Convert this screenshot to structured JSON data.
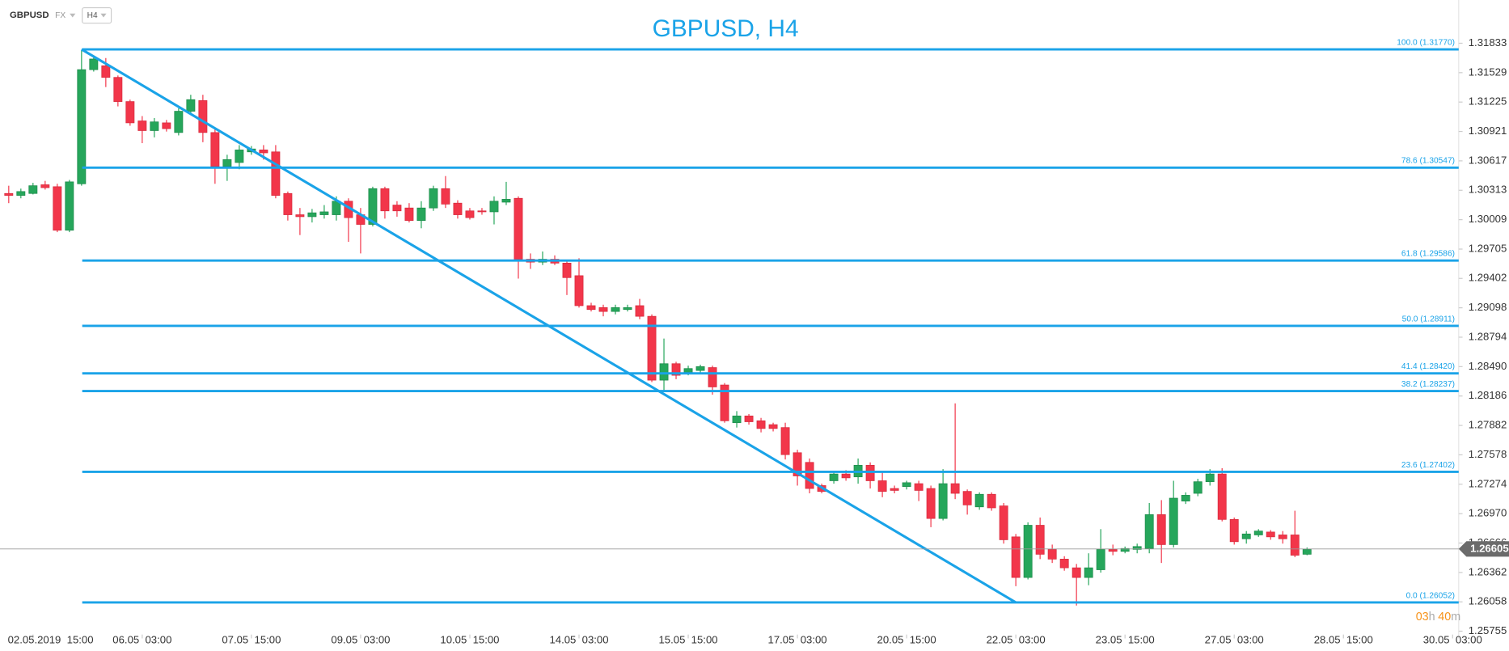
{
  "header": {
    "symbol": "GBPUSD",
    "market": "FX",
    "timeframe": "H4"
  },
  "chart_data": {
    "type": "candlestick",
    "title": "GBPUSD, H4",
    "up_color": "#26a65b",
    "down_color": "#f2364a",
    "open": [
      1.3028,
      1.3026,
      1.3028,
      1.3037,
      1.3035,
      1.299,
      1.3038,
      1.3156,
      1.316,
      1.3148,
      1.3123,
      1.3103,
      1.3093,
      1.3101,
      1.3091,
      1.3113,
      1.3124,
      1.3091,
      1.3056,
      1.306,
      1.3071,
      1.3073,
      1.3071,
      1.3028,
      1.3006,
      1.3004,
      1.3006,
      1.3006,
      1.302,
      1.3006,
      1.2996,
      1.3033,
      1.3016,
      1.3013,
      1.3,
      1.3013,
      1.3033,
      1.3018,
      1.301,
      1.301,
      1.3009,
      1.3019,
      1.3023,
      1.296,
      1.2957,
      1.296,
      1.2956,
      1.2943,
      1.2912,
      1.291,
      1.2906,
      1.2908,
      1.2912,
      1.2901,
      1.2835,
      1.2852,
      1.2843,
      1.2845,
      1.2848,
      1.283,
      1.2791,
      1.2798,
      1.2793,
      1.2789,
      1.2786,
      1.276,
      1.275,
      1.2726,
      1.2731,
      1.2738,
      1.2735,
      1.2747,
      1.2731,
      1.2723,
      1.2725,
      1.2728,
      1.2723,
      1.2692,
      1.2728,
      1.272,
      1.2704,
      1.2717,
      1.2705,
      1.2673,
      1.2631,
      1.2685,
      1.266,
      1.265,
      1.2641,
      1.2631,
      1.2639,
      1.266,
      1.2658,
      1.266,
      1.2661,
      1.2696,
      1.2665,
      1.271,
      1.2718,
      1.273,
      1.2738,
      1.2691,
      1.2671,
      1.2675,
      1.2678,
      1.2675,
      1.2675,
      1.2655
    ],
    "high": [
      1.3036,
      1.3033,
      1.3039,
      1.3041,
      1.3038,
      1.3042,
      1.3176,
      1.317,
      1.3168,
      1.315,
      1.3125,
      1.3108,
      1.3106,
      1.3104,
      1.3116,
      1.313,
      1.313,
      1.3095,
      1.3068,
      1.3078,
      1.3077,
      1.3078,
      1.3078,
      1.303,
      1.3013,
      1.3012,
      1.3016,
      1.3025,
      1.3023,
      1.3013,
      1.3035,
      1.3035,
      1.302,
      1.3018,
      1.302,
      1.3036,
      1.3046,
      1.3021,
      1.3013,
      1.3013,
      1.3025,
      1.304,
      1.3025,
      1.2966,
      1.2968,
      1.2964,
      1.2959,
      1.2961,
      1.2915,
      1.2913,
      1.2913,
      1.2913,
      1.2919,
      1.2903,
      1.2878,
      1.2854,
      1.285,
      1.2851,
      1.285,
      1.2832,
      1.2803,
      1.28,
      1.2796,
      1.2791,
      1.2791,
      1.2763,
      1.2754,
      1.2728,
      1.2741,
      1.2742,
      1.2754,
      1.275,
      1.274,
      1.2726,
      1.2731,
      1.2731,
      1.2726,
      1.2743,
      1.2811,
      1.2722,
      1.2719,
      1.2719,
      1.2708,
      1.2676,
      1.2688,
      1.2693,
      1.2665,
      1.2653,
      1.2645,
      1.2656,
      1.2681,
      1.2665,
      1.2663,
      1.2666,
      1.2708,
      1.2711,
      1.2731,
      1.2719,
      1.2733,
      1.2743,
      1.2744,
      1.2693,
      1.2679,
      1.2681,
      1.268,
      1.2679,
      1.27,
      1.2662
    ],
    "low": [
      1.3018,
      1.3023,
      1.3027,
      1.3032,
      1.2988,
      1.2988,
      1.3036,
      1.3154,
      1.3138,
      1.3118,
      1.3098,
      1.308,
      1.3086,
      1.3092,
      1.3088,
      1.311,
      1.3081,
      1.3038,
      1.3041,
      1.3053,
      1.3068,
      1.3063,
      1.3023,
      1.3,
      1.2985,
      1.2998,
      1.3002,
      1.3,
      1.2978,
      1.2966,
      1.2994,
      1.3002,
      1.3004,
      1.2998,
      1.2992,
      1.301,
      1.3013,
      1.3002,
      1.3001,
      1.3006,
      1.2996,
      1.3016,
      1.294,
      1.295,
      1.2954,
      1.2954,
      1.2923,
      1.291,
      1.2906,
      1.2901,
      1.2903,
      1.2906,
      1.2898,
      1.2833,
      1.2823,
      1.2836,
      1.284,
      1.2842,
      1.282,
      1.2791,
      1.2786,
      1.2789,
      1.2781,
      1.2782,
      1.2753,
      1.2726,
      1.2718,
      1.2718,
      1.2728,
      1.2731,
      1.2728,
      1.2723,
      1.2714,
      1.2718,
      1.2722,
      1.271,
      1.2683,
      1.269,
      1.2712,
      1.2696,
      1.2701,
      1.27,
      1.2666,
      1.2622,
      1.2629,
      1.265,
      1.2646,
      1.2638,
      1.2602,
      1.2623,
      1.2636,
      1.2654,
      1.2656,
      1.2656,
      1.2656,
      1.2646,
      1.2662,
      1.2707,
      1.2715,
      1.2726,
      1.2689,
      1.2665,
      1.2666,
      1.2673,
      1.267,
      1.2666,
      1.2652,
      1.2654
    ],
    "close": [
      1.3026,
      1.303,
      1.3036,
      1.3034,
      1.299,
      1.304,
      1.3156,
      1.3167,
      1.3148,
      1.3123,
      1.3101,
      1.3093,
      1.3102,
      1.3095,
      1.3113,
      1.3125,
      1.3091,
      1.3056,
      1.3063,
      1.3073,
      1.3074,
      1.307,
      1.3026,
      1.3006,
      1.3004,
      1.3008,
      1.3009,
      1.302,
      1.3003,
      1.2996,
      1.3033,
      1.301,
      1.301,
      1.3,
      1.3013,
      1.3033,
      1.3017,
      1.3006,
      1.3003,
      1.3009,
      1.302,
      1.3022,
      1.296,
      1.2957,
      1.296,
      1.2956,
      1.2941,
      1.2912,
      1.2908,
      1.2906,
      1.291,
      1.291,
      1.2901,
      1.2835,
      1.2852,
      1.284,
      1.2847,
      1.2849,
      1.2828,
      1.2793,
      1.2798,
      1.2792,
      1.2785,
      1.2785,
      1.2758,
      1.2736,
      1.2723,
      1.272,
      1.2738,
      1.2734,
      1.2747,
      1.2731,
      1.272,
      1.2721,
      1.2729,
      1.2721,
      1.2692,
      1.2728,
      1.2718,
      1.2706,
      1.2717,
      1.2703,
      1.267,
      1.2631,
      1.2685,
      1.2655,
      1.265,
      1.2641,
      1.2631,
      1.2641,
      1.266,
      1.2658,
      1.2661,
      1.2663,
      1.2696,
      1.2665,
      1.2713,
      1.2716,
      1.273,
      1.2738,
      1.2691,
      1.2668,
      1.2676,
      1.2679,
      1.2673,
      1.2671,
      1.2654,
      1.266
    ],
    "ylim": [
      1.2568,
      1.3228
    ],
    "yticks": [
      1.31833,
      1.31529,
      1.31225,
      1.30921,
      1.30617,
      1.30313,
      1.30009,
      1.29705,
      1.29402,
      1.29098,
      1.28794,
      {
        "value": 1.2849,
        "label": "1.28490"
      },
      1.28186,
      1.27882,
      1.27578,
      1.27274,
      {
        "value": 1.2697,
        "label": "1.26970"
      },
      1.26666,
      1.26362,
      1.26058,
      1.25755
    ],
    "xlim": [
      -0.72,
      119.5
    ],
    "xticks": [
      {
        "value": 2,
        "label": "02.05.2019  15:00"
      },
      {
        "value": 11,
        "label": "06.05  03:00"
      },
      {
        "value": 20,
        "label": "07.05  15:00"
      },
      {
        "value": 29,
        "label": "09.05  03:00"
      },
      {
        "value": 38,
        "label": "10.05  15:00"
      },
      {
        "value": 47,
        "label": "14.05  03:00"
      },
      {
        "value": 56,
        "label": "15.05  15:00"
      },
      {
        "value": 65,
        "label": "17.05  03:00"
      },
      {
        "value": 74,
        "label": "20.05  15:00"
      },
      {
        "value": 83,
        "label": "22.05  03:00"
      },
      {
        "value": 92,
        "label": "23.05  15:00"
      },
      {
        "value": 101,
        "label": "27.05  03:00"
      },
      {
        "value": 110,
        "label": "28.05  15:00"
      },
      {
        "value": 119,
        "label": "30.05  03:00"
      }
    ],
    "last_price": 1.26605,
    "fib_color": "#1aa3e8",
    "fib_levels": [
      {
        "value": 1.3177,
        "label": "100.0 (1.31770)"
      },
      {
        "value": 1.30547,
        "label": "78.6 (1.30547)"
      },
      {
        "value": 1.29586,
        "label": "61.8 (1.29586)"
      },
      {
        "value": 1.28911,
        "label": "50.0 (1.28911)"
      },
      {
        "value": 1.2842,
        "label": "41.4 (1.28420)"
      },
      {
        "value": 1.28237,
        "label": "38.2 (1.28237)"
      },
      {
        "value": 1.27402,
        "label": "23.6 (1.27402)"
      },
      {
        "value": 1.26052,
        "label": "0.0 (1.26052)"
      }
    ],
    "trendline": {
      "x": [
        6,
        83
      ],
      "y": [
        1.3177,
        1.26052
      ]
    }
  },
  "countdown": {
    "hours": "03",
    "hours_unit": "h",
    "minutes": "40",
    "minutes_unit": "m"
  }
}
